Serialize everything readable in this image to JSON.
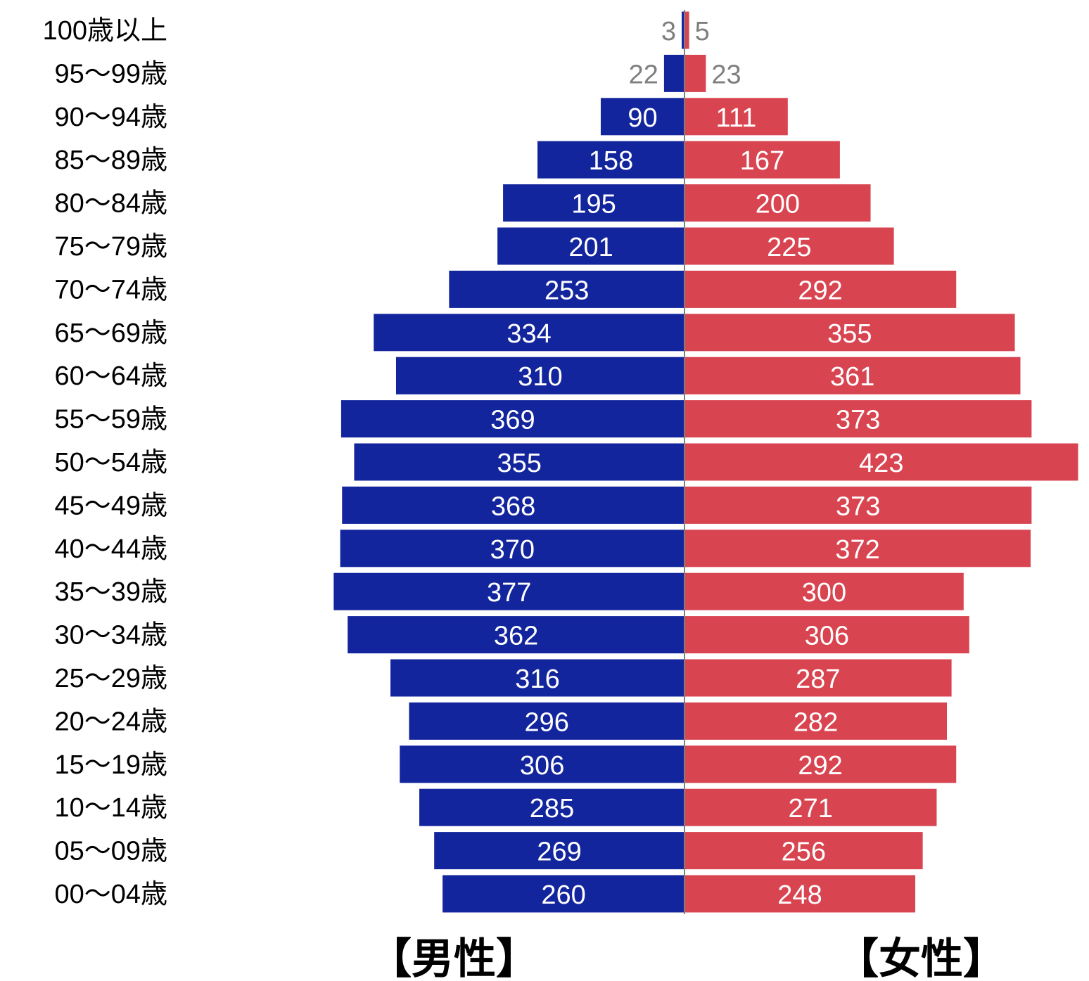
{
  "chart_data": {
    "type": "bar",
    "orientation": "horizontal-population-pyramid",
    "categories": [
      "100歳以上",
      "95～99歳",
      "90～94歳",
      "85～89歳",
      "80～84歳",
      "75～79歳",
      "70～74歳",
      "65～69歳",
      "60～64歳",
      "55～59歳",
      "50～54歳",
      "45～49歳",
      "40～44歳",
      "35～39歳",
      "30～34歳",
      "25～29歳",
      "20～24歳",
      "15～19歳",
      "10～14歳",
      "05～09歳",
      "00～04歳"
    ],
    "series": [
      {
        "name": "【男性】",
        "color": "#13259c",
        "values": [
          3,
          22,
          90,
          158,
          195,
          201,
          253,
          334,
          310,
          369,
          355,
          368,
          370,
          377,
          362,
          316,
          296,
          306,
          285,
          269,
          260
        ]
      },
      {
        "name": "【女性】",
        "color": "#d84450",
        "values": [
          5,
          23,
          111,
          167,
          200,
          225,
          292,
          355,
          361,
          373,
          423,
          373,
          372,
          300,
          306,
          287,
          282,
          292,
          271,
          256,
          248
        ]
      }
    ],
    "title": "",
    "xlabel": "",
    "ylabel": "",
    "grid": false,
    "legend": "bottom",
    "axis_color": "#7f7f7f",
    "inside_label_color": "#ffffff",
    "outside_label_color": "#7f7f7f"
  }
}
